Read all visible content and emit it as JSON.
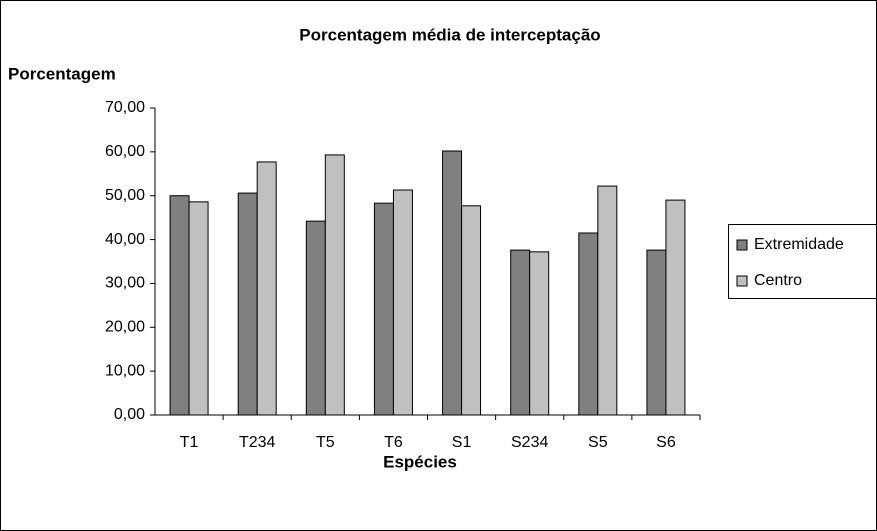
{
  "chart_data": {
    "type": "bar",
    "title": "Porcentagem  média de interceptação",
    "y_label": "Porcentagem",
    "x_label": "Espécies",
    "categories": [
      "T1",
      "T234",
      "T5",
      "T6",
      "S1",
      "S234",
      "S5",
      "S6"
    ],
    "series": [
      {
        "name": "Extremidade",
        "color": "#808080",
        "values": [
          50.0,
          50.6,
          44.2,
          48.3,
          60.2,
          37.6,
          41.5,
          37.6
        ]
      },
      {
        "name": "Centro",
        "color": "#c0c0c0",
        "values": [
          48.6,
          57.7,
          59.3,
          51.3,
          47.7,
          37.2,
          52.2,
          49.0
        ]
      }
    ],
    "ylim": [
      0,
      70
    ],
    "yticks": [
      {
        "value": 0,
        "label": "0,00"
      },
      {
        "value": 10,
        "label": "10,00"
      },
      {
        "value": 20,
        "label": "20,00"
      },
      {
        "value": 30,
        "label": "30,00"
      },
      {
        "value": 40,
        "label": "40,00"
      },
      {
        "value": 50,
        "label": "50,00"
      },
      {
        "value": 60,
        "label": "60,00"
      },
      {
        "value": 70,
        "label": "70,00"
      }
    ],
    "grid": false,
    "legend": "right"
  }
}
